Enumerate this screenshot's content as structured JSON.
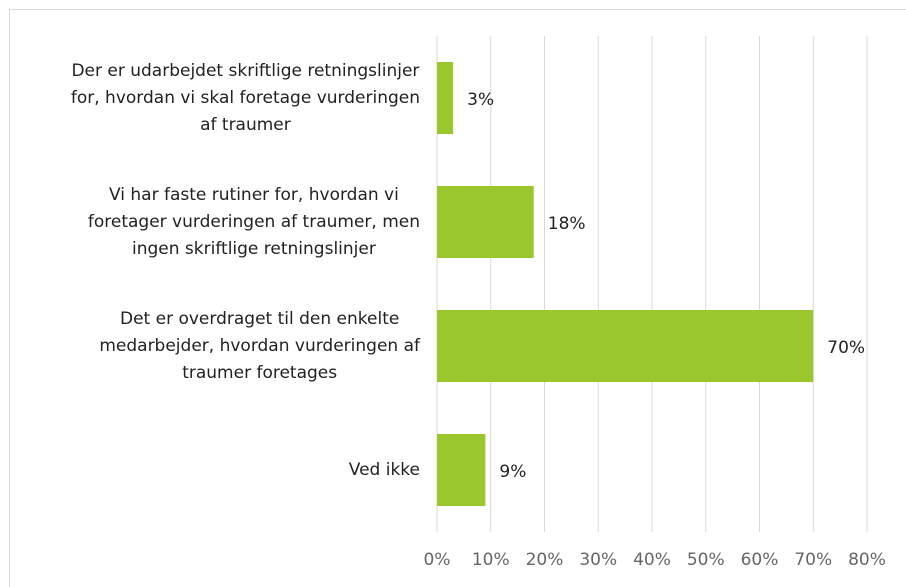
{
  "chart_data": {
    "type": "hbar",
    "categories": [
      [
        "Der er udarbejdet skriftlige retningslinjer",
        "for, hvordan vi skal foretage vurderingen",
        "af traumer"
      ],
      [
        "Vi har faste rutiner for, hvordan vi",
        "foretager vurderingen af traumer, men",
        "ingen skriftlige retningslinjer"
      ],
      [
        "Det er overdraget til den enkelte",
        "medarbejder, hvordan vurderingen af",
        "traumer foretages"
      ],
      [
        "Ved ikke"
      ]
    ],
    "values": [
      3,
      18,
      70,
      9
    ],
    "value_labels": [
      "3%",
      "18%",
      "70%",
      "9%"
    ],
    "color": "#9ac72e",
    "xlim": [
      0,
      80
    ],
    "xticks": [
      {
        "value": 0,
        "label": "0%"
      },
      {
        "value": 10,
        "label": "10%"
      },
      {
        "value": 20,
        "label": "20%"
      },
      {
        "value": 30,
        "label": "30%"
      },
      {
        "value": 40,
        "label": "40%"
      },
      {
        "value": 50,
        "label": "50%"
      },
      {
        "value": 60,
        "label": "60%"
      },
      {
        "value": 70,
        "label": "70%"
      },
      {
        "value": 80,
        "label": "80%"
      }
    ],
    "grid": true
  }
}
